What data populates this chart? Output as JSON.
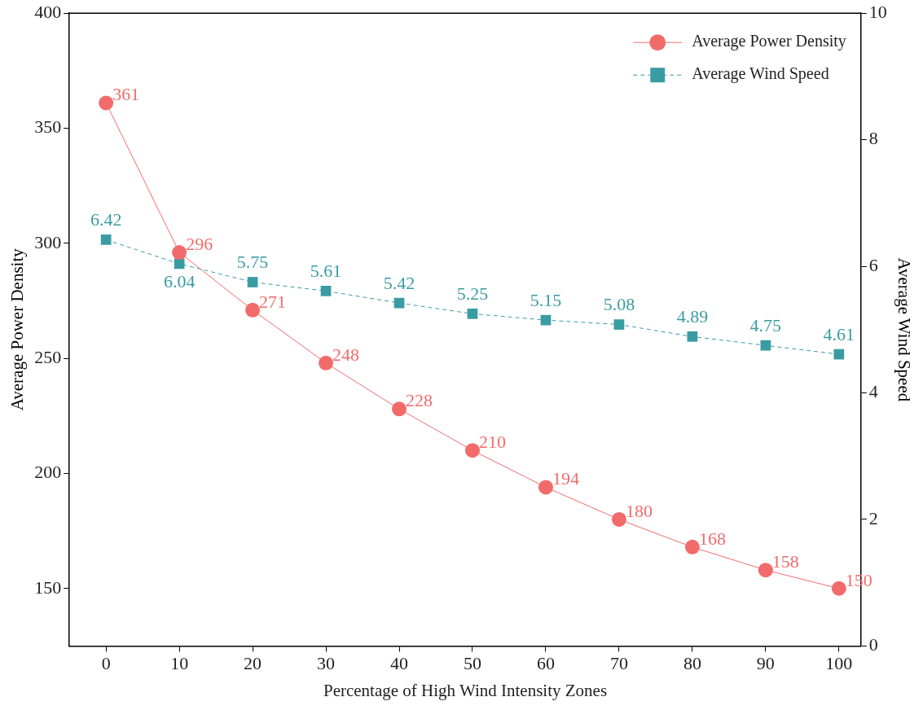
{
  "chart_data": {
    "type": "line",
    "xlabel": "Percentage of High Wind Intensity Zones",
    "ylabel": "Average Power Density",
    "y2label": "Average Wind Speed",
    "x": [
      0,
      10,
      20,
      30,
      40,
      50,
      60,
      70,
      80,
      90,
      100
    ],
    "xlim": [
      -5,
      103
    ],
    "xticks": [
      0,
      10,
      20,
      30,
      40,
      50,
      60,
      70,
      80,
      90,
      100
    ],
    "ylim": [
      125,
      400
    ],
    "yticks": [
      150,
      200,
      250,
      300,
      350,
      400
    ],
    "y2lim": [
      0,
      10
    ],
    "y2ticks": [
      0,
      2,
      4,
      6,
      8,
      10
    ],
    "series": [
      {
        "name": "Average Power Density",
        "color": "#f26b6b",
        "marker": "circle",
        "line_style": "solid",
        "values": [
          361,
          296,
          271,
          248,
          228,
          210,
          194,
          180,
          168,
          158,
          150
        ]
      },
      {
        "name": "Average Wind Speed",
        "color": "#3a9ca3",
        "marker": "square",
        "line_style": "dashed",
        "axis": "y2",
        "values": [
          6.42,
          6.04,
          5.75,
          5.61,
          5.42,
          5.25,
          5.15,
          5.08,
          4.89,
          4.75,
          4.61
        ]
      }
    ],
    "data_labels": true,
    "legend": "top right",
    "grid": false
  }
}
